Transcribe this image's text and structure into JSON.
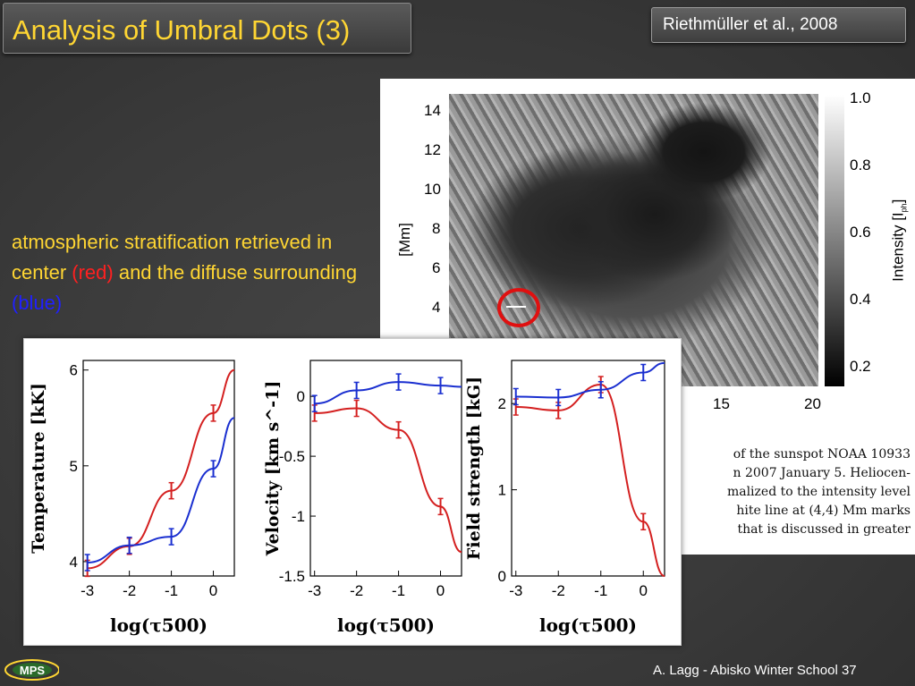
{
  "slide": {
    "title": "Analysis of Umbral Dots (3)",
    "reference": "Riethmüller et al., 2008",
    "description": {
      "part1": "atmospheric stratification retrieved in center ",
      "red": "(red)",
      "part2": " and the diffuse surrounding ",
      "blue": "(blue)"
    },
    "footer": "A. Lagg - Abisko Winter School   37",
    "logo": "MPS",
    "colors": {
      "title": "#ffd633",
      "red": "#e01010",
      "blue": "#1a2fd0"
    }
  },
  "sunspot_image": {
    "y_label": "[Mm]",
    "y_ticks": [
      "14",
      "12",
      "10",
      "8",
      "6",
      "4"
    ],
    "x_ticks": [
      "15",
      "20"
    ],
    "colorbar_label": "Intensity [I",
    "colorbar_label_sub": "ph",
    "colorbar_label_end": "]",
    "colorbar_ticks": [
      "1.0",
      "0.8",
      "0.6",
      "0.4",
      "0.2"
    ],
    "caption_lines": [
      "of the sunspot NOAA 10933",
      "n 2007 January 5. Heliocen-",
      "malized to the intensity level",
      "hite line at (4,4) Mm marks",
      "that is discussed in greater"
    ]
  },
  "chart_data": [
    {
      "type": "line",
      "ylabel": "Temperature [kK]",
      "xlabel": "log(τ500)",
      "xlim": [
        -3.1,
        0.5
      ],
      "ylim": [
        3.85,
        6.1
      ],
      "xticks": [
        "-3",
        "-2",
        "-1",
        "0"
      ],
      "yticks": [
        "4",
        "5",
        "6"
      ],
      "series": [
        {
          "color": "red",
          "x": [
            -3,
            -2,
            -1,
            0
          ],
          "values": [
            3.93,
            4.16,
            4.74,
            5.55
          ],
          "curve_end": 6.0
        },
        {
          "color": "blue",
          "x": [
            -3,
            -2,
            -1,
            0
          ],
          "values": [
            3.99,
            4.17,
            4.26,
            4.97
          ],
          "curve_end": 5.5
        }
      ]
    },
    {
      "type": "line",
      "ylabel": "Velocity [km s^-1]",
      "xlabel": "log(τ500)",
      "xlim": [
        -3.1,
        0.5
      ],
      "ylim": [
        -1.5,
        0.3
      ],
      "xticks": [
        "-3",
        "-2",
        "-1",
        "0"
      ],
      "yticks": [
        "0",
        "-0.5",
        "-1",
        "-1.5"
      ],
      "series": [
        {
          "color": "red",
          "x": [
            -3,
            -2,
            -1,
            0
          ],
          "values": [
            -0.14,
            -0.1,
            -0.28,
            -0.92
          ],
          "curve_end": -1.3
        },
        {
          "color": "blue",
          "x": [
            -3,
            -2,
            -1,
            0
          ],
          "values": [
            -0.06,
            0.05,
            0.12,
            0.09
          ],
          "curve_end": 0.08
        }
      ]
    },
    {
      "type": "line",
      "ylabel": "Field strength [kG]",
      "xlabel": "log(τ500)",
      "xlim": [
        -3.1,
        0.5
      ],
      "ylim": [
        0,
        2.5
      ],
      "xticks": [
        "-3",
        "-2",
        "-1",
        "0"
      ],
      "yticks": [
        "0",
        "1",
        "2"
      ],
      "series": [
        {
          "color": "red",
          "x": [
            -3,
            -2,
            -1,
            0
          ],
          "values": [
            1.96,
            1.92,
            2.22,
            0.63
          ],
          "curve_end": 0
        },
        {
          "color": "blue",
          "x": [
            -3,
            -2,
            -1,
            0
          ],
          "values": [
            2.08,
            2.07,
            2.16,
            2.36
          ],
          "curve_end": 2.47
        }
      ]
    }
  ]
}
